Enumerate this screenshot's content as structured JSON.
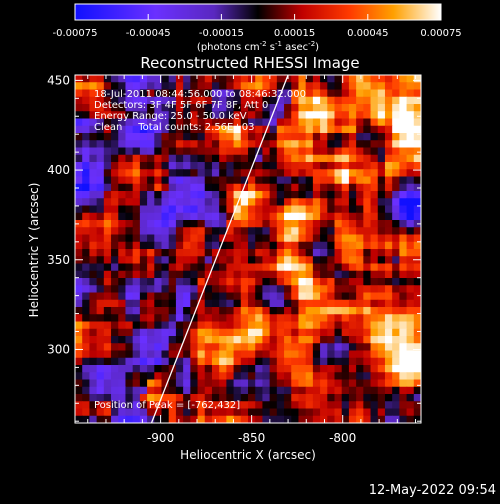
{
  "colorbar": {
    "ticks": [
      "-0.00075",
      "-0.00045",
      "-0.00015",
      "0.00015",
      "0.00045",
      "0.00075"
    ],
    "units_prefix": "(photons cm",
    "units_exp1": "-2",
    "units_mid": " s",
    "units_exp2": "-1",
    "units_mid2": " asec",
    "units_exp3": "-2",
    "units_suffix": ")"
  },
  "title": "Reconstructed RHESSI Image",
  "info_lines": [
    "18-Jul-2011 08:44:56.000 to 08:46:32.000",
    "Detectors: 3F 4F 5F 6F 7F 8F, Att 0",
    "Energy Range: 25.0 - 50.0 keV",
    "Clean     Total counts: 2.56E+03"
  ],
  "peak_text": "Position of Peak = [-762,432]",
  "footer_timestamp": "12-May-2022 09:54",
  "chart_data": {
    "type": "heatmap",
    "title": "Reconstructed RHESSI Image",
    "xlabel": "Heliocentric X (arcsec)",
    "ylabel": "Heliocentric Y (arcsec)",
    "xlim": [
      -947,
      -757
    ],
    "ylim": [
      259,
      453
    ],
    "x_ticks": [
      -900,
      -850,
      -800
    ],
    "y_ticks": [
      300,
      350,
      400,
      450
    ],
    "x_tick_labels": [
      "-900",
      "-850",
      "-800"
    ],
    "y_tick_labels": [
      "300",
      "350",
      "400",
      "450"
    ],
    "colorbar_range": [
      -0.00075,
      0.00075
    ],
    "colormap": "blue-purple-black-red-orange-yellow-white",
    "peak_position": [
      -762,
      432
    ],
    "limb_line": [
      [
        -905,
        259
      ],
      [
        -830,
        453
      ]
    ],
    "colors": {
      "background": "#000000",
      "text": "#ffffff"
    }
  }
}
